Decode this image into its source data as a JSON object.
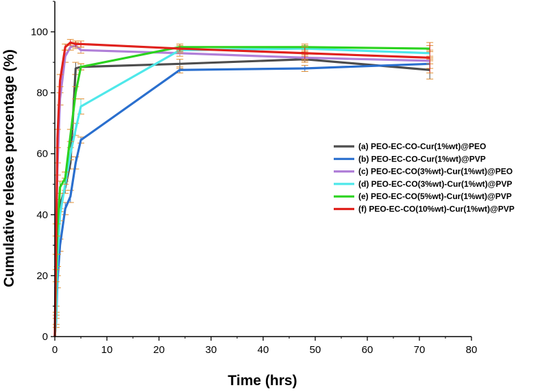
{
  "chart_data": {
    "type": "line",
    "xlabel": "Time (hrs)",
    "ylabel": "Cumulative release percentage (%)",
    "xlim": [
      0,
      80
    ],
    "ylim": [
      0,
      110
    ],
    "xticks": [
      0,
      10,
      20,
      30,
      40,
      50,
      60,
      70,
      80
    ],
    "yticks": [
      0,
      20,
      40,
      60,
      80,
      100
    ],
    "grid": false,
    "legend_position": "center-right",
    "series": [
      {
        "name": "(a) PEO-EC-CO-Cur(1%wt)@PEO",
        "color": "#4d4d4d",
        "points": [
          [
            0,
            0
          ],
          [
            0.25,
            8
          ],
          [
            0.5,
            25
          ],
          [
            1,
            43
          ],
          [
            2,
            49
          ],
          [
            3,
            57
          ],
          [
            4,
            88
          ],
          [
            5,
            88.5
          ],
          [
            24,
            89.5
          ],
          [
            48,
            91
          ],
          [
            72,
            87.5
          ]
        ],
        "err": [
          0,
          2,
          2,
          2,
          2,
          2,
          2,
          1,
          1.5,
          1,
          3
        ]
      },
      {
        "name": "(b) PEO-EC-CO-Cur(1%wt)@PVP",
        "color": "#2a6fce",
        "points": [
          [
            0,
            0
          ],
          [
            0.25,
            5
          ],
          [
            0.5,
            18
          ],
          [
            1,
            30
          ],
          [
            2,
            42
          ],
          [
            3,
            46
          ],
          [
            4,
            57
          ],
          [
            5,
            64.5
          ],
          [
            24,
            87.5
          ],
          [
            48,
            88
          ],
          [
            72,
            89.5
          ]
        ],
        "err": [
          0,
          2,
          2,
          2,
          2,
          2,
          2,
          1,
          1,
          1,
          1.5
        ]
      },
      {
        "name": "(c) PEO-EC-CO(3%wt)-Cur(1%wt)@PEO",
        "color": "#b07fd8",
        "points": [
          [
            0,
            0
          ],
          [
            0.25,
            35
          ],
          [
            0.5,
            55
          ],
          [
            1,
            78
          ],
          [
            2,
            92
          ],
          [
            3,
            95
          ],
          [
            4,
            95.5
          ],
          [
            5,
            94
          ],
          [
            24,
            93
          ],
          [
            48,
            91.5
          ],
          [
            72,
            90.5
          ]
        ],
        "err": [
          0,
          2,
          2,
          2,
          2,
          1,
          1,
          1,
          1,
          1,
          1
        ]
      },
      {
        "name": "(d) PEO-EC-CO(3%wt)-Cur(1%wt)@PVP",
        "color": "#4fe8ea",
        "points": [
          [
            0,
            0
          ],
          [
            0.25,
            6
          ],
          [
            0.5,
            25
          ],
          [
            1,
            40
          ],
          [
            2,
            50
          ],
          [
            3,
            60
          ],
          [
            4,
            68
          ],
          [
            5,
            75.5
          ],
          [
            24,
            94
          ],
          [
            48,
            94.5
          ],
          [
            72,
            93
          ]
        ],
        "err": [
          0,
          2,
          2,
          2,
          2,
          2,
          2,
          2.5,
          1,
          1,
          1
        ]
      },
      {
        "name": "(e) PEO-EC-CO(5%wt)-Cur(1%wt)@PVP",
        "color": "#2bd31f",
        "points": [
          [
            0,
            0
          ],
          [
            0.25,
            20
          ],
          [
            0.5,
            35
          ],
          [
            1,
            49
          ],
          [
            2,
            52
          ],
          [
            3,
            66
          ],
          [
            4,
            80
          ],
          [
            5,
            88.5
          ],
          [
            24,
            95
          ],
          [
            48,
            95
          ],
          [
            72,
            94.5
          ]
        ],
        "err": [
          0,
          2,
          2,
          2,
          2,
          2,
          2,
          1,
          1,
          1,
          1
        ]
      },
      {
        "name": "(f) PEO-EC-CO(10%wt)-Cur(1%wt)@PVP",
        "color": "#e0211c",
        "points": [
          [
            0,
            0
          ],
          [
            0.25,
            30
          ],
          [
            0.5,
            65
          ],
          [
            1,
            84
          ],
          [
            2,
            95
          ],
          [
            3,
            96.5
          ],
          [
            4,
            96
          ],
          [
            5,
            96
          ],
          [
            24,
            94.5
          ],
          [
            48,
            93
          ],
          [
            72,
            91.5
          ]
        ],
        "err": [
          0,
          3,
          3,
          2,
          1,
          1,
          1,
          1,
          1,
          2,
          5
        ]
      }
    ]
  }
}
